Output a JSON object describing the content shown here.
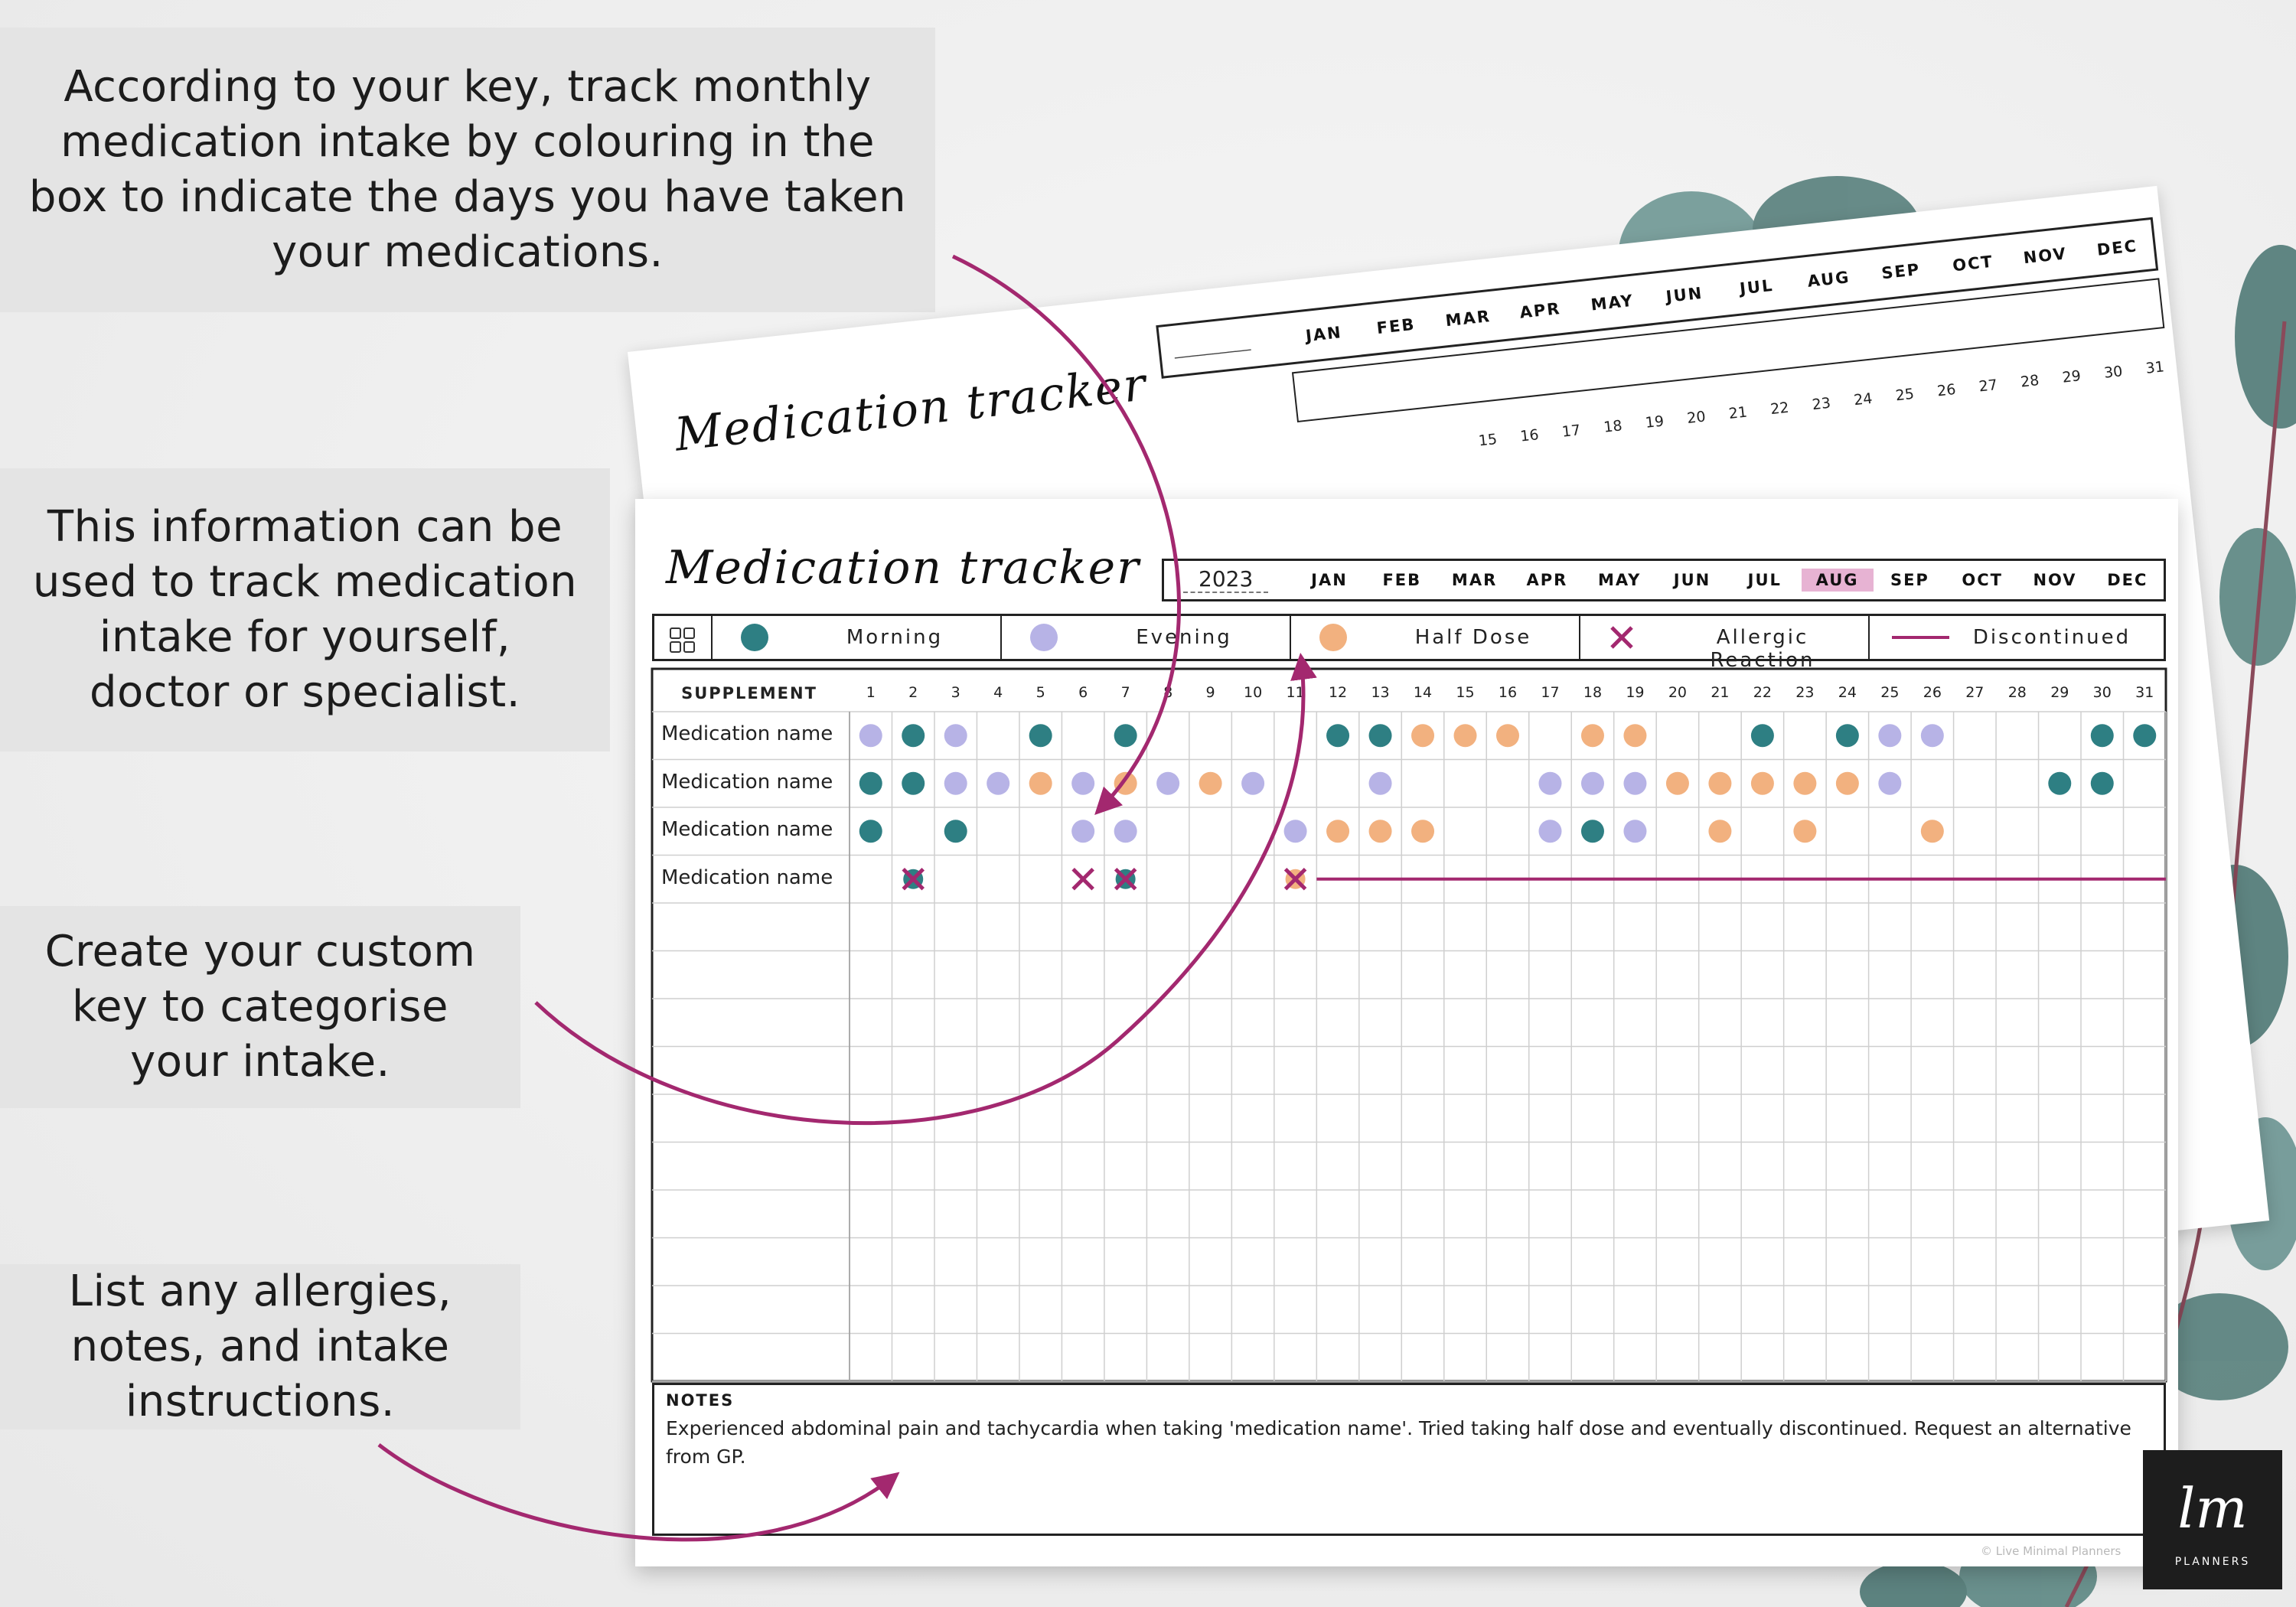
{
  "callouts": [
    {
      "id": "track-monthly",
      "text": "According to your key, track monthly medication intake by colouring in the box to indicate the days you have taken your medications."
    },
    {
      "id": "used-for",
      "text": "This information can be used to track medication intake for yourself, doctor or specialist."
    },
    {
      "id": "custom-key",
      "text": "Create your custom key to categorise your intake."
    },
    {
      "id": "allergies",
      "text": "List any allergies, notes, and intake instructions."
    }
  ],
  "tracker": {
    "title": "Medication tracker",
    "year": "2023",
    "back_year_placeholder": "__________",
    "months": [
      "JAN",
      "FEB",
      "MAR",
      "APR",
      "MAY",
      "JUN",
      "JUL",
      "AUG",
      "SEP",
      "OCT",
      "NOV",
      "DEC"
    ],
    "highlighted_month": "AUG",
    "key": [
      {
        "label": "Morning",
        "color": "#2e7f83",
        "icon": "teal-dot-icon"
      },
      {
        "label": "Evening",
        "color": "#b7b3e6",
        "icon": "lavender-dot-icon"
      },
      {
        "label": "Half Dose",
        "color": "#f2b17f",
        "icon": "orange-dot-icon"
      },
      {
        "label": "Allergic Reaction",
        "color": "#a3286f",
        "icon": "cross-icon"
      },
      {
        "label": "Discontinued",
        "color": "#a3286f",
        "icon": "line-icon"
      }
    ],
    "supplement_header": "SUPPLEMENT",
    "days": [
      "1",
      "2",
      "3",
      "4",
      "5",
      "6",
      "7",
      "8",
      "9",
      "10",
      "11",
      "12",
      "13",
      "14",
      "15",
      "16",
      "17",
      "18",
      "19",
      "20",
      "21",
      "22",
      "23",
      "24",
      "25",
      "26",
      "27",
      "28",
      "29",
      "30",
      "31"
    ],
    "back_days": [
      "15",
      "16",
      "17",
      "18",
      "19",
      "20",
      "21",
      "22",
      "23",
      "24",
      "25",
      "26",
      "27",
      "28",
      "29",
      "30",
      "31"
    ],
    "rows": [
      {
        "name": "Medication name",
        "marks": {
          "1": "E",
          "2": "M",
          "3": "E",
          "5": "M",
          "7": "M",
          "12": "M",
          "13": "M",
          "14": "H",
          "15": "H",
          "16": "H",
          "18": "H",
          "19": "H",
          "22": "M",
          "24": "M",
          "25": "E",
          "26": "E",
          "30": "M",
          "31": "M"
        }
      },
      {
        "name": "Medication name",
        "marks": {
          "1": "M",
          "2": "M",
          "3": "E",
          "4": "E",
          "5": "H",
          "6": "E",
          "7": "H",
          "8": "E",
          "9": "H",
          "10": "E",
          "13": "E",
          "17": "E",
          "18": "E",
          "19": "E",
          "20": "H",
          "21": "H",
          "22": "H",
          "23": "H",
          "24": "H",
          "25": "E",
          "29": "M",
          "30": "M"
        }
      },
      {
        "name": "Medication name",
        "marks": {
          "1": "M",
          "3": "M",
          "6": "E",
          "7": "E",
          "11": "E",
          "12": "H",
          "13": "H",
          "14": "H",
          "17": "E",
          "18": "M",
          "19": "E",
          "21": "H",
          "23": "H",
          "26": "H"
        }
      },
      {
        "name": "Medication name",
        "marks": {
          "2": "XM",
          "6": "X",
          "7": "XM",
          "11": "XH"
        },
        "discontinued_from": 12
      }
    ],
    "empty_rows": 10,
    "notes_title": "NOTES",
    "notes_text": "Experienced abdominal pain and tachycardia when taking 'medication name'. Tried taking half dose and eventually discontinued. Request an alternative from GP.",
    "copyright": "© Live Minimal Planners"
  },
  "logo": {
    "script": "lm",
    "text": "PLANNERS"
  },
  "colors": {
    "accent": "#a3286f",
    "morning": "#2e7f83",
    "evening": "#b7b3e6",
    "half": "#f2b17f",
    "highlight": "#e7b3d3",
    "callout_bg": "#e4e4e4"
  }
}
